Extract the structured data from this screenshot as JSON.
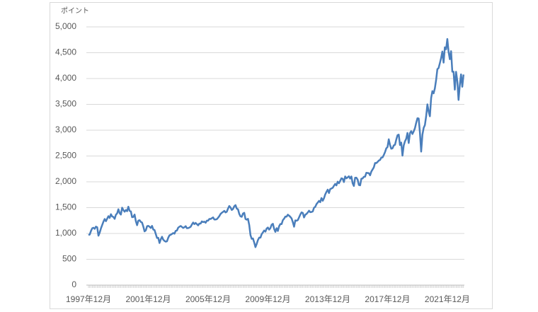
{
  "chart_data": {
    "type": "line",
    "y_label": "ポイント",
    "categories": [
      "1997年12月",
      null,
      null,
      null,
      null,
      null,
      null,
      null,
      null,
      null,
      null,
      null,
      null,
      null,
      null,
      null,
      null,
      null,
      null,
      null,
      null,
      null,
      null,
      null,
      null,
      null,
      null,
      null,
      null,
      null,
      null,
      null,
      null,
      null,
      null,
      null,
      null,
      null,
      null,
      null,
      null,
      null,
      null,
      null,
      null,
      null,
      null,
      null,
      "2001年12月",
      null,
      null,
      null,
      null,
      null,
      null,
      null,
      null,
      null,
      null,
      null,
      null,
      null,
      null,
      null,
      null,
      null,
      null,
      null,
      null,
      null,
      null,
      null,
      null,
      null,
      null,
      null,
      null,
      null,
      null,
      null,
      null,
      null,
      null,
      null,
      null,
      null,
      null,
      null,
      null,
      null,
      null,
      null,
      null,
      null,
      null,
      null,
      "2005年12月",
      null,
      null,
      null,
      null,
      null,
      null,
      null,
      null,
      null,
      null,
      null,
      null,
      null,
      null,
      null,
      null,
      null,
      null,
      null,
      null,
      null,
      null,
      null,
      null,
      null,
      null,
      null,
      null,
      null,
      null,
      null,
      null,
      null,
      null,
      null,
      null,
      null,
      null,
      null,
      null,
      null,
      null,
      null,
      null,
      null,
      null,
      null,
      "2009年12月",
      null,
      null,
      null,
      null,
      null,
      null,
      null,
      null,
      null,
      null,
      null,
      null,
      null,
      null,
      null,
      null,
      null,
      null,
      null,
      null,
      null,
      null,
      null,
      null,
      null,
      null,
      null,
      null,
      null,
      null,
      null,
      null,
      null,
      null,
      null,
      null,
      null,
      null,
      null,
      null,
      null,
      null,
      null,
      null,
      null,
      null,
      null,
      "2013年12月",
      null,
      null,
      null,
      null,
      null,
      null,
      null,
      null,
      null,
      null,
      null,
      null,
      null,
      null,
      null,
      null,
      null,
      null,
      null,
      null,
      null,
      null,
      null,
      null,
      null,
      null,
      null,
      null,
      null,
      null,
      null,
      null,
      null,
      null,
      null,
      null,
      null,
      null,
      null,
      null,
      null,
      null,
      null,
      null,
      null,
      null,
      null,
      "2017年12月",
      null,
      null,
      null,
      null,
      null,
      null,
      null,
      null,
      null,
      null,
      null,
      null,
      null,
      null,
      null,
      null,
      null,
      null,
      null,
      null,
      null,
      null,
      null,
      null,
      null,
      null,
      null,
      null,
      null,
      null,
      null,
      null,
      null,
      null,
      null,
      null,
      null,
      null,
      null,
      null,
      null,
      null,
      null,
      null,
      null,
      null,
      null,
      "2021年12月",
      null,
      null,
      null,
      null,
      null,
      null,
      null,
      null,
      null,
      null,
      null,
      null,
      null
    ],
    "values": [
      970,
      980,
      1049,
      1101,
      1111,
      1090,
      1133,
      1120,
      957,
      1017,
      1098,
      1164,
      1229,
      1280,
      1238,
      1286,
      1335,
      1301,
      1373,
      1329,
      1320,
      1283,
      1362,
      1389,
      1469,
      1394,
      1366,
      1499,
      1452,
      1421,
      1455,
      1431,
      1518,
      1437,
      1429,
      1315,
      1320,
      1366,
      1240,
      1160,
      1249,
      1256,
      1224,
      1211,
      1134,
      1041,
      1060,
      1139,
      1148,
      1130,
      1107,
      1147,
      1076,
      1067,
      990,
      912,
      916,
      815,
      886,
      936,
      880,
      856,
      841,
      848,
      917,
      964,
      975,
      990,
      1008,
      996,
      1051,
      1058,
      1112,
      1131,
      1145,
      1126,
      1107,
      1121,
      1141,
      1102,
      1104,
      1115,
      1130,
      1174,
      1212,
      1181,
      1204,
      1181,
      1157,
      1192,
      1191,
      1234,
      1220,
      1229,
      1207,
      1249,
      1248,
      1280,
      1281,
      1295,
      1311,
      1270,
      1270,
      1277,
      1304,
      1336,
      1378,
      1401,
      1418,
      1438,
      1407,
      1421,
      1482,
      1531,
      1503,
      1455,
      1474,
      1527,
      1549,
      1481,
      1468,
      1379,
      1331,
      1323,
      1386,
      1400,
      1280,
      1267,
      1283,
      1165,
      969,
      896,
      903,
      826,
      735,
      798,
      873,
      919,
      919,
      987,
      1021,
      1057,
      1036,
      1096,
      1115,
      1074,
      1104,
      1169,
      1187,
      1089,
      1031,
      1102,
      1049,
      1141,
      1183,
      1181,
      1258,
      1286,
      1327,
      1326,
      1364,
      1345,
      1321,
      1292,
      1219,
      1131,
      1253,
      1247,
      1258,
      1312,
      1366,
      1408,
      1398,
      1310,
      1362,
      1379,
      1407,
      1441,
      1412,
      1416,
      1426,
      1498,
      1515,
      1569,
      1598,
      1631,
      1606,
      1686,
      1633,
      1682,
      1757,
      1806,
      1848,
      1783,
      1859,
      1872,
      1884,
      1924,
      1960,
      1931,
      2003,
      1972,
      2018,
      2068,
      2059,
      1995,
      2105,
      2068,
      2086,
      2107,
      2063,
      2104,
      1972,
      1920,
      2079,
      2080,
      2044,
      1940,
      1932,
      2060,
      2065,
      2097,
      2099,
      2174,
      2171,
      2168,
      2126,
      2199,
      2239,
      2279,
      2364,
      2363,
      2384,
      2412,
      2423,
      2470,
      2472,
      2519,
      2575,
      2648,
      2674,
      2824,
      2714,
      2641,
      2648,
      2705,
      2718,
      2816,
      2902,
      2914,
      2712,
      2760,
      2507,
      2704,
      2784,
      2834,
      2946,
      2752,
      2942,
      2980,
      2926,
      2977,
      3038,
      3141,
      3231,
      3226,
      2954,
      2585,
      2912,
      3044,
      3100,
      3271,
      3500,
      3363,
      3270,
      3622,
      3756,
      3714,
      3811,
      3973,
      4181,
      4204,
      4298,
      4395,
      4523,
      4308,
      4605,
      4567,
      4766,
      4516,
      4374,
      4530,
      4132,
      4132,
      3785,
      4130,
      3955,
      3586,
      3872,
      4080,
      3840,
      4077
    ],
    "color": "#4a7ebb",
    "ylim": [
      0,
      5000
    ],
    "yticks": [
      0,
      500,
      {
        "value": 1000,
        "label": "1,000"
      },
      {
        "value": 1500,
        "label": "1,500"
      },
      {
        "value": 2000,
        "label": "2,000"
      },
      {
        "value": 2500,
        "label": "2,500"
      },
      {
        "value": 3000,
        "label": "3,000"
      },
      {
        "value": 3500,
        "label": "3,500"
      },
      {
        "value": 4000,
        "label": "4,000"
      },
      {
        "value": 4500,
        "label": "4,500"
      },
      {
        "value": 5000,
        "label": "5,000"
      }
    ],
    "grid": true
  }
}
